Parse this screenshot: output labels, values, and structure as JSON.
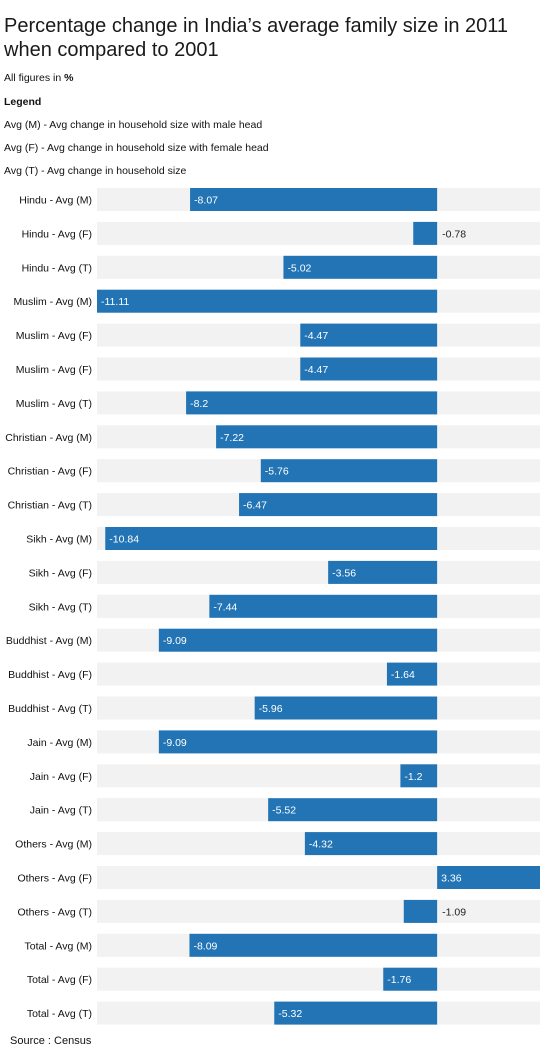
{
  "title": "Percentage change in India’s average family size in 2011 when compared to 2001",
  "units_note": {
    "prefix": "All figures in ",
    "unit": "%"
  },
  "legend": {
    "heading": "Legend",
    "entries": [
      "Avg (M) - Avg change in household size with male head",
      "Avg (F) - Avg change in household size with female head",
      "Avg (T) - Avg change in household size"
    ]
  },
  "source": "Source : Census",
  "colors": {
    "bar": "#2274b5",
    "track": "#f2f2f2",
    "label_inside": "#ffffff",
    "label_outside": "#222222"
  },
  "chart_data": {
    "type": "bar",
    "orientation": "horizontal",
    "unit": "%",
    "categories": [
      "Hindu - Avg (M)",
      "Hindu - Avg (F)",
      "Hindu - Avg (T)",
      "Muslim - Avg (M)",
      "Muslim - Avg (F)",
      "Muslim - Avg (F)",
      "Muslim - Avg (T)",
      "Christian - Avg (M)",
      "Christian - Avg (F)",
      "Christian - Avg (T)",
      "Sikh - Avg (M)",
      "Sikh - Avg (F)",
      "Sikh - Avg (T)",
      "Buddhist - Avg (M)",
      "Buddhist - Avg (F)",
      "Buddhist - Avg (T)",
      "Jain - Avg (M)",
      "Jain - Avg (F)",
      "Jain - Avg (T)",
      "Others - Avg (M)",
      "Others - Avg (F)",
      "Others - Avg (T)",
      "Total - Avg (M)",
      "Total - Avg (F)",
      "Total - Avg (T)"
    ],
    "values": [
      -8.07,
      -0.78,
      -5.02,
      -11.11,
      -4.47,
      -4.47,
      -8.2,
      -7.22,
      -5.76,
      -6.47,
      -10.84,
      -3.56,
      -7.44,
      -9.09,
      -1.64,
      -5.96,
      -9.09,
      -1.2,
      -5.52,
      -4.32,
      3.36,
      -1.09,
      -8.09,
      -1.76,
      -5.32
    ],
    "value_labels": [
      "-8.07",
      "-0.78",
      "-5.02",
      "-11.11",
      "-4.47",
      "-4.47",
      "-8.2",
      "-7.22",
      "-5.76",
      "-6.47",
      "-10.84",
      "-3.56",
      "-7.44",
      "-9.09",
      "-1.64",
      "-5.96",
      "-9.09",
      "-1.2",
      "-5.52",
      "-4.32",
      "3.36",
      "-1.09",
      "-8.09",
      "-1.76",
      "-5.32"
    ],
    "xlim": [
      -11.11,
      3.36
    ],
    "grid": false,
    "legend": "none"
  }
}
